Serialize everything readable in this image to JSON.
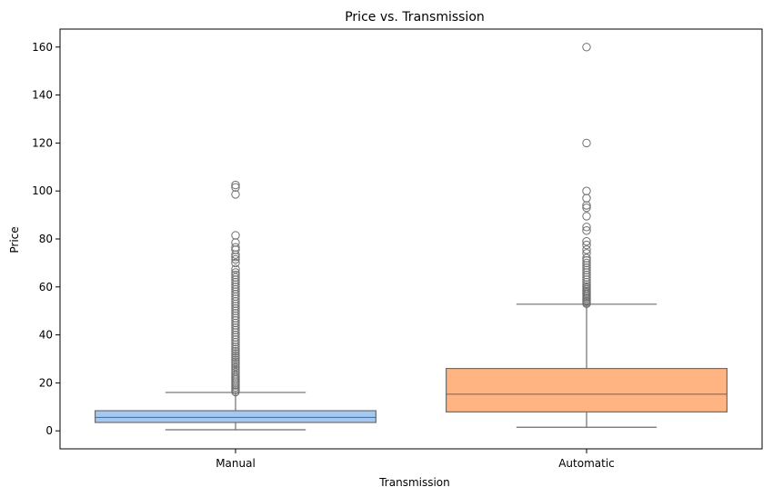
{
  "chart_data": {
    "type": "box",
    "title": "Price vs. Transmission",
    "xlabel": "Transmission",
    "ylabel": "Price",
    "categories": [
      "Manual",
      "Automatic"
    ],
    "ylim": [
      -7.5,
      167.5
    ],
    "yticks": [
      0,
      20,
      40,
      60,
      80,
      100,
      120,
      140,
      160
    ],
    "grid": false,
    "boxes": [
      {
        "category": "Manual",
        "color": "#a1c9f4",
        "whisker_low": 0.45,
        "q1": 3.5,
        "median": 5.6,
        "q3": 8.4,
        "whisker_high": 16.0,
        "outliers": [
          16.2,
          16.8,
          17.5,
          18.2,
          19.0,
          19.8,
          20.5,
          21.3,
          22.0,
          22.8,
          23.6,
          24.5,
          25.3,
          26.2,
          27.0,
          27.9,
          28.7,
          29.6,
          30.5,
          31.4,
          32.3,
          33.2,
          34.1,
          35.0,
          36.0,
          37.0,
          38.0,
          39.0,
          40.0,
          41.0,
          42.0,
          43.0,
          44.0,
          45.0,
          46.0,
          47.0,
          48.0,
          49.0,
          50.0,
          51.0,
          52.0,
          53.0,
          54.0,
          55.0,
          56.0,
          57.0,
          58.0,
          59.0,
          60.0,
          61.0,
          62.0,
          63.0,
          64.0,
          65.0,
          66.0,
          67.5,
          70.0,
          71.5,
          72.5,
          73.5,
          75.5,
          76.5,
          78.5,
          81.5,
          98.6,
          101.5,
          102.5
        ]
      },
      {
        "category": "Automatic",
        "color": "#ffb482",
        "whisker_low": 1.5,
        "q1": 7.9,
        "median": 15.3,
        "q3": 26.0,
        "whisker_high": 52.8,
        "outliers": [
          53.0,
          53.5,
          54.0,
          54.6,
          55.2,
          55.8,
          56.4,
          57.0,
          57.6,
          58.2,
          58.8,
          59.5,
          60.2,
          61.0,
          62.0,
          63.0,
          64.0,
          65.0,
          66.0,
          67.0,
          68.0,
          69.0,
          70.0,
          71.0,
          72.0,
          74.0,
          75.5,
          77.5,
          79.0,
          83.5,
          85.0,
          89.5,
          93.0,
          94.0,
          97.0,
          100.0,
          120.0,
          160.0
        ]
      }
    ]
  }
}
